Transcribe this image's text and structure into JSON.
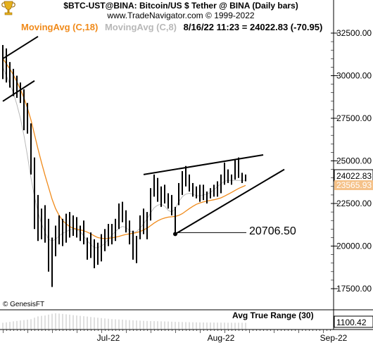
{
  "header": {
    "symbol_line": "$BTC-UST@BINA:  Bitcoin/US $ Tether @ BINA  (Daily bars)",
    "source_line": "www.TradeNavigator.com © 1999-2022"
  },
  "legend": {
    "ma18_label": "MovingAvg (C,18)",
    "ma8_label": "MovingAvg (C,8)",
    "last_info": "8/16/22 11:23 = 24022.83 (-70.95)",
    "ma18_color": "#f08a1a",
    "ma8_color": "#b8b8b8"
  },
  "copyright": "© GenesisFT",
  "annotation": "20706.50",
  "atr": {
    "title": "Avg True Range (30)",
    "value": "1100.42"
  },
  "price_tags": {
    "last": "24022.83",
    "ma18": "23565.93"
  },
  "logo_icon": "trophy-icon",
  "chart_data": {
    "type": "ohlc-bar",
    "y_ticks": [
      17500,
      20000,
      22500,
      25000,
      27500,
      30000,
      32500
    ],
    "y_tick_labels": [
      "17500.00",
      "20000.00",
      "22500.00",
      "25000.00",
      "27500.00",
      "30000.00",
      "32500.00"
    ],
    "ylim": [
      16000,
      34000
    ],
    "x_labels": [
      "Jul-22",
      "Aug-22",
      "Sep-22"
    ],
    "x_label_bar_index": [
      30,
      62,
      94
    ],
    "bars": [
      {
        "h": 31800,
        "l": 29800
      },
      {
        "h": 31600,
        "l": 29600
      },
      {
        "h": 30800,
        "l": 29300
      },
      {
        "h": 30400,
        "l": 28800
      },
      {
        "h": 30000,
        "l": 28700
      },
      {
        "h": 29600,
        "l": 28400
      },
      {
        "h": 29200,
        "l": 26800
      },
      {
        "h": 28400,
        "l": 26600
      },
      {
        "h": 27200,
        "l": 24200
      },
      {
        "h": 25200,
        "l": 21000
      },
      {
        "h": 23000,
        "l": 20300
      },
      {
        "h": 22200,
        "l": 20400
      },
      {
        "h": 22400,
        "l": 20200
      },
      {
        "h": 21600,
        "l": 18500
      },
      {
        "h": 20500,
        "l": 17600
      },
      {
        "h": 21200,
        "l": 19400
      },
      {
        "h": 21800,
        "l": 20100
      },
      {
        "h": 21600,
        "l": 20000
      },
      {
        "h": 21900,
        "l": 20200
      },
      {
        "h": 22000,
        "l": 20500
      },
      {
        "h": 21800,
        "l": 20600
      },
      {
        "h": 21700,
        "l": 20500
      },
      {
        "h": 21200,
        "l": 20300
      },
      {
        "h": 21500,
        "l": 20100
      },
      {
        "h": 20500,
        "l": 19200
      },
      {
        "h": 20800,
        "l": 19300
      },
      {
        "h": 20400,
        "l": 18700
      },
      {
        "h": 20200,
        "l": 18900
      },
      {
        "h": 20700,
        "l": 19100
      },
      {
        "h": 21000,
        "l": 19700
      },
      {
        "h": 21300,
        "l": 20000
      },
      {
        "h": 21300,
        "l": 20100
      },
      {
        "h": 21600,
        "l": 20300
      },
      {
        "h": 22500,
        "l": 21000
      },
      {
        "h": 22600,
        "l": 21400
      },
      {
        "h": 22100,
        "l": 20800
      },
      {
        "h": 21500,
        "l": 20100
      },
      {
        "h": 20900,
        "l": 19200
      },
      {
        "h": 20600,
        "l": 19000
      },
      {
        "h": 21800,
        "l": 20400
      },
      {
        "h": 22200,
        "l": 20700
      },
      {
        "h": 22000,
        "l": 20400
      },
      {
        "h": 23400,
        "l": 21500
      },
      {
        "h": 24200,
        "l": 22900
      },
      {
        "h": 24000,
        "l": 22600
      },
      {
        "h": 23500,
        "l": 22300
      },
      {
        "h": 23600,
        "l": 22500
      },
      {
        "h": 23100,
        "l": 22200
      },
      {
        "h": 23000,
        "l": 21800
      },
      {
        "h": 22300,
        "l": 20706.5
      },
      {
        "h": 23700,
        "l": 22400
      },
      {
        "h": 24400,
        "l": 23000
      },
      {
        "h": 24700,
        "l": 23500
      },
      {
        "h": 24200,
        "l": 23200
      },
      {
        "h": 23700,
        "l": 22900
      },
      {
        "h": 23500,
        "l": 22800
      },
      {
        "h": 23600,
        "l": 22600
      },
      {
        "h": 23600,
        "l": 22700
      },
      {
        "h": 23200,
        "l": 22500
      },
      {
        "h": 23400,
        "l": 22800
      },
      {
        "h": 23600,
        "l": 22900
      },
      {
        "h": 23800,
        "l": 22900
      },
      {
        "h": 24200,
        "l": 23100
      },
      {
        "h": 24900,
        "l": 23600
      },
      {
        "h": 24500,
        "l": 23700
      },
      {
        "h": 24200,
        "l": 23600
      },
      {
        "h": 25100,
        "l": 23900
      },
      {
        "h": 25200,
        "l": 24000
      },
      {
        "h": 24300,
        "l": 23700
      },
      {
        "h": 24200,
        "l": 23800
      }
    ],
    "ma18": [
      31000,
      30700,
      30400,
      30050,
      29650,
      29200,
      28700,
      28100,
      27400,
      26550,
      25700,
      24900,
      24150,
      23450,
      22750,
      22200,
      21800,
      21500,
      21300,
      21150,
      21050,
      21000,
      20950,
      20900,
      20820,
      20720,
      20600,
      20500,
      20460,
      20440,
      20450,
      20480,
      20520,
      20570,
      20630,
      20680,
      20720,
      20750,
      20790,
      20850,
      20950,
      21050,
      21200,
      21350,
      21480,
      21580,
      21650,
      21700,
      21720,
      21740,
      21800,
      21900,
      22050,
      22200,
      22330,
      22450,
      22530,
      22590,
      22640,
      22680,
      22720,
      22770,
      22830,
      22930,
      23040,
      23150,
      23270,
      23380,
      23470,
      23560
    ],
    "ma8": [
      30500,
      30000,
      29500,
      29000,
      28300,
      27500,
      26500,
      25300,
      24000,
      22900,
      22000,
      21300,
      20800,
      20400,
      20300,
      20400,
      20600,
      20750,
      20850,
      20950,
      21000,
      20950,
      20850,
      20600,
      20300,
      20100,
      19900,
      19900,
      20000,
      20150,
      20400,
      20650,
      20850,
      21050,
      21150,
      21100,
      20900,
      20800,
      20850,
      21050,
      21300,
      21600,
      21950,
      22250,
      22400,
      22450,
      22350,
      22100,
      22000,
      22200,
      22600,
      22900,
      23050,
      23100,
      23050,
      22950,
      22950,
      23000,
      23050,
      23150,
      23300,
      23500,
      23650,
      23800,
      23850,
      23850,
      23850,
      23850,
      23850,
      23850
    ],
    "trendlines": [
      {
        "p1": [
          0,
          31000
        ],
        "p2": [
          10,
          32300
        ]
      },
      {
        "p1": [
          0,
          28500
        ],
        "p2": [
          9,
          29700
        ]
      },
      {
        "p1": [
          40,
          24200
        ],
        "p2": [
          74,
          25350
        ]
      },
      {
        "p1": [
          49,
          20706.5
        ],
        "p2": [
          80,
          24500
        ]
      }
    ],
    "atr_values": [
      1100,
      1120,
      1150,
      1180,
      1200,
      1230,
      1250,
      1270,
      1300,
      1380,
      1450,
      1480,
      1500,
      1550,
      1600,
      1620,
      1610,
      1590,
      1570,
      1550,
      1520,
      1500,
      1480,
      1460,
      1440,
      1420,
      1400,
      1380,
      1360,
      1340,
      1320,
      1300,
      1290,
      1280,
      1270,
      1260,
      1250,
      1240,
      1230,
      1220,
      1210,
      1200,
      1195,
      1190,
      1185,
      1180,
      1175,
      1170,
      1160,
      1150,
      1145,
      1140,
      1135,
      1130,
      1125,
      1120,
      1118,
      1116,
      1114,
      1112,
      1110,
      1108,
      1106,
      1105,
      1104,
      1103,
      1102,
      1101,
      1100,
      1100.42
    ]
  }
}
